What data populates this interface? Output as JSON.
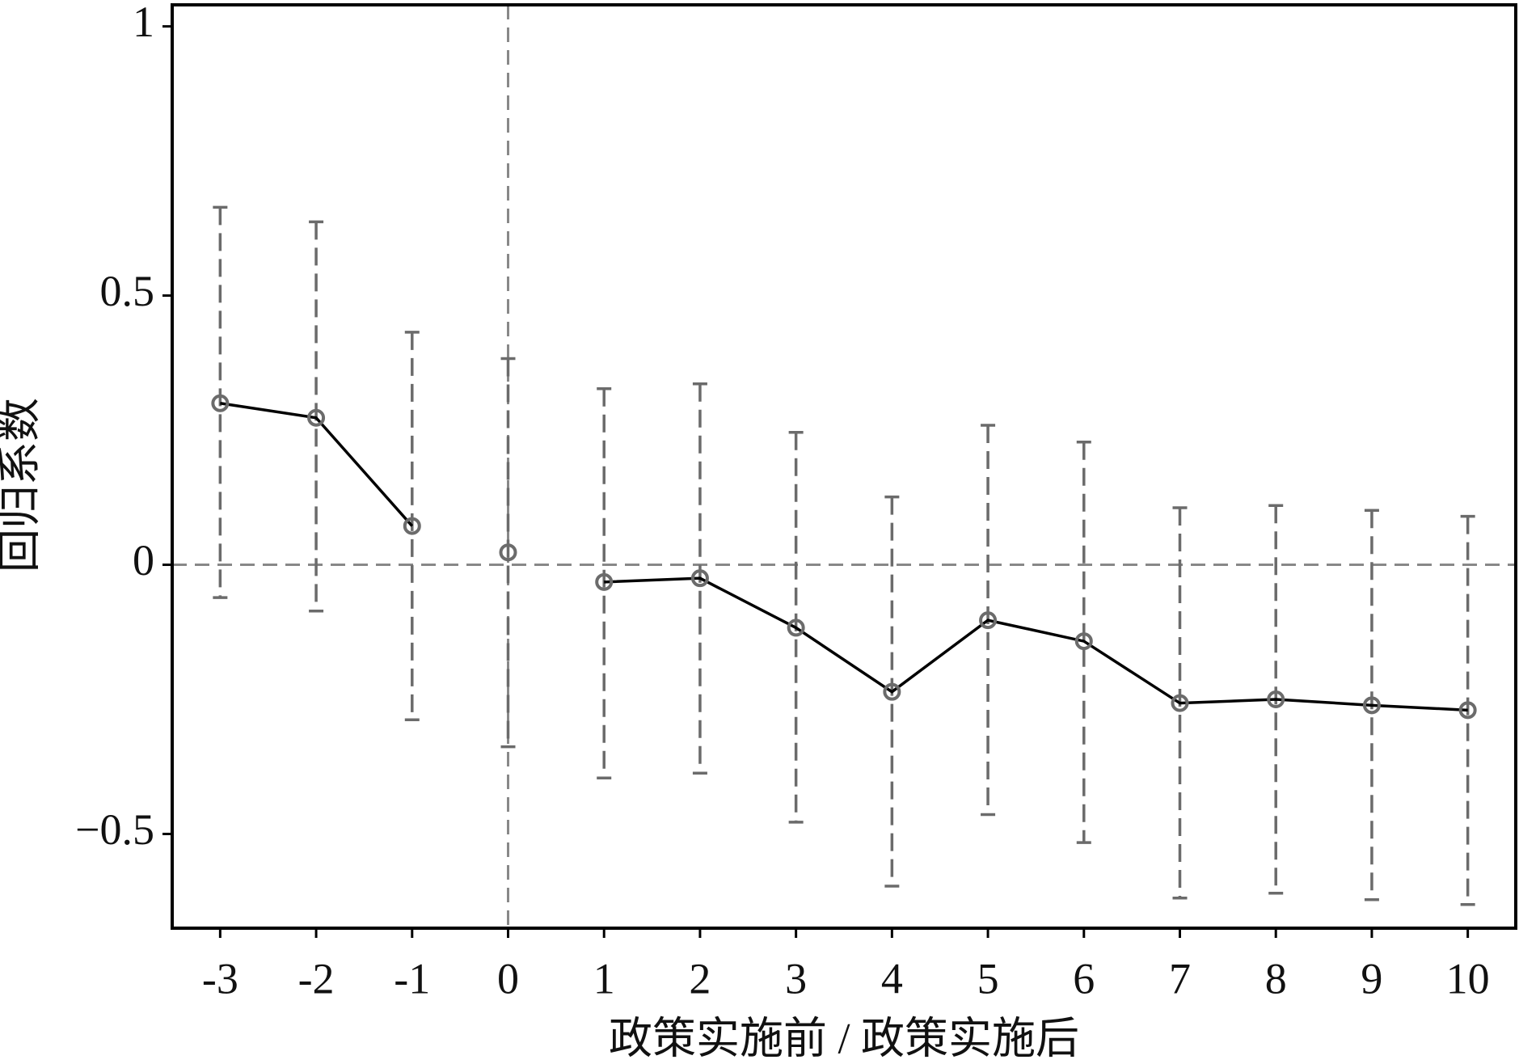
{
  "chart_data": {
    "type": "errorbar",
    "xlabel": "政策实施前 / 政策实施后",
    "ylabel": "回归系数",
    "x": [
      -3,
      -2,
      -1,
      0,
      1,
      2,
      3,
      4,
      5,
      6,
      7,
      8,
      9,
      10
    ],
    "values": [
      0.3,
      0.273,
      0.072,
      0.023,
      -0.032,
      -0.025,
      -0.117,
      -0.236,
      -0.103,
      -0.142,
      -0.257,
      -0.25,
      -0.261,
      -0.27
    ],
    "lower": [
      -0.061,
      -0.086,
      -0.288,
      -0.338,
      -0.396,
      -0.387,
      -0.478,
      -0.597,
      -0.464,
      -0.516,
      -0.619,
      -0.61,
      -0.622,
      -0.631
    ],
    "upper": [
      0.664,
      0.637,
      0.432,
      0.383,
      0.327,
      0.336,
      0.246,
      0.126,
      0.259,
      0.228,
      0.106,
      0.11,
      0.101,
      0.09
    ],
    "color": "#000000",
    "marker_color": "#6b6b6b",
    "errorbar_color": "#6b6b6b",
    "xlim": [
      -3.5,
      10.5
    ],
    "ylim": [
      -0.675,
      1.04
    ],
    "xticks": [
      -3,
      -2,
      -1,
      0,
      1,
      2,
      3,
      4,
      5,
      6,
      7,
      8,
      9,
      10
    ],
    "yticks": [
      {
        "value": -0.5,
        "label": "−0.5"
      },
      0,
      0.5,
      1
    ],
    "hline": 0,
    "vline": 0,
    "reference_line_color": "#888888"
  }
}
